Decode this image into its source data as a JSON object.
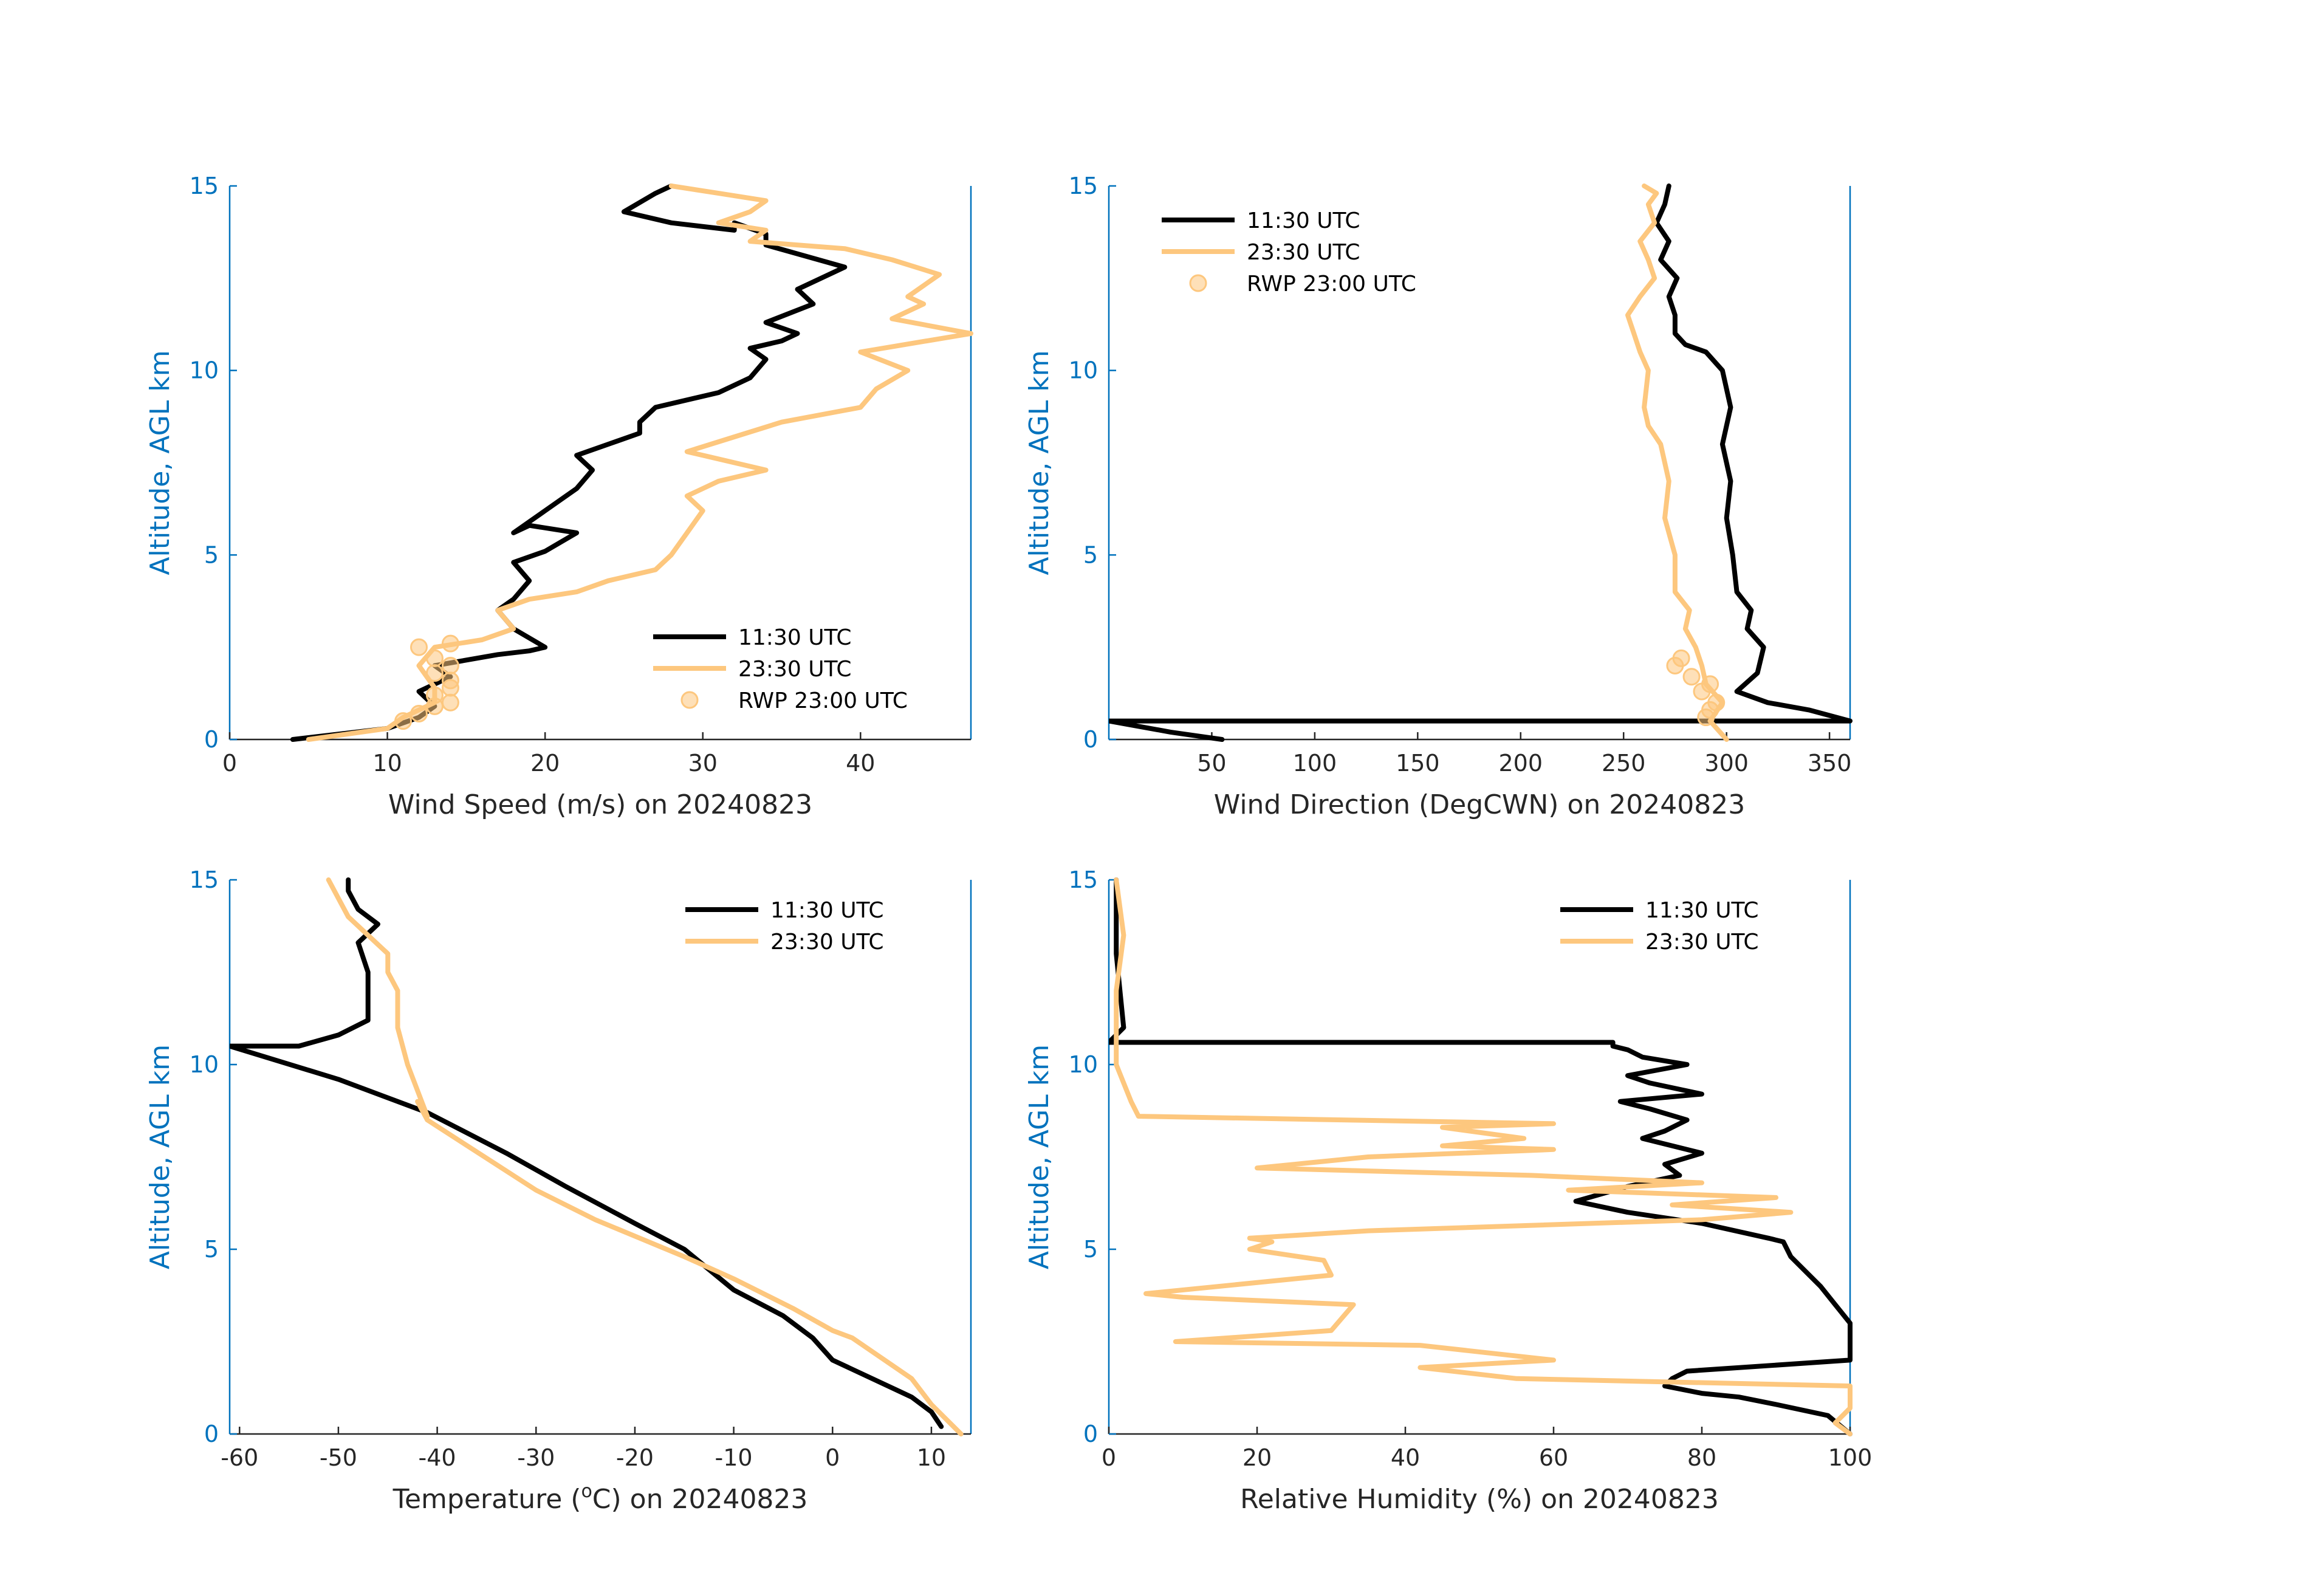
{
  "colors": {
    "black_series": "#000000",
    "orange_series": "#fdc77e",
    "axis_blue": "#0072bd",
    "axis_dark": "#262626"
  },
  "legend_labels": {
    "a": "11:30 UTC",
    "b": "23:30 UTC",
    "c": "RWP 23:00 UTC"
  },
  "chart_data": [
    {
      "id": "wind-speed",
      "type": "line",
      "xlabel": "Wind Speed (m/s) on 20240823",
      "ylabel": "Altitude, AGL km",
      "xlim": [
        0,
        47
      ],
      "ylim": [
        0,
        15
      ],
      "xticks": [
        0,
        10,
        20,
        30,
        40
      ],
      "yticks": [
        0,
        5,
        10,
        15
      ],
      "legend": "bottom-right",
      "series": [
        {
          "name": "11:30 UTC",
          "color": "black",
          "x": [
            4,
            10,
            12,
            13,
            12,
            14,
            13,
            17,
            19,
            20,
            18,
            17,
            18,
            19,
            18,
            20,
            22,
            19,
            18,
            20,
            22,
            23,
            22,
            24,
            26,
            26,
            27,
            31,
            33,
            34,
            33,
            35,
            36,
            34,
            37,
            36,
            39,
            34,
            34,
            32,
            32,
            28,
            25,
            27,
            28
          ],
          "y": [
            0,
            0.3,
            0.6,
            0.9,
            1.3,
            1.7,
            2.0,
            2.3,
            2.4,
            2.5,
            3.0,
            3.5,
            3.8,
            4.3,
            4.8,
            5.1,
            5.6,
            5.8,
            5.6,
            6.2,
            6.8,
            7.3,
            7.7,
            8.0,
            8.3,
            8.6,
            9.0,
            9.4,
            9.8,
            10.3,
            10.6,
            10.8,
            11.0,
            11.3,
            11.8,
            12.2,
            12.8,
            13.4,
            13.7,
            14.0,
            13.8,
            14.0,
            14.3,
            14.8,
            15.0
          ]
        },
        {
          "name": "23:30 UTC",
          "color": "orange",
          "x": [
            5,
            10,
            11,
            13,
            13,
            12,
            13,
            16,
            18,
            17,
            19,
            22,
            24,
            27,
            28,
            29,
            30,
            29,
            31,
            34,
            29,
            32,
            35,
            40,
            41,
            43,
            40,
            47,
            42,
            44,
            43,
            45,
            42,
            39,
            33,
            34,
            31,
            33,
            34,
            31,
            28
          ],
          "y": [
            0,
            0.3,
            0.6,
            1.0,
            1.4,
            2.0,
            2.5,
            2.7,
            3.0,
            3.5,
            3.8,
            4.0,
            4.3,
            4.6,
            5.0,
            5.6,
            6.2,
            6.6,
            7.0,
            7.3,
            7.8,
            8.2,
            8.6,
            9.0,
            9.5,
            10.0,
            10.5,
            11.0,
            11.4,
            11.8,
            12.0,
            12.6,
            13.0,
            13.3,
            13.5,
            13.8,
            14.0,
            14.3,
            14.6,
            14.8,
            15.0
          ]
        },
        {
          "name": "RWP 23:00 UTC",
          "color": "orange",
          "marker": "circle",
          "x": [
            11,
            12,
            13,
            14,
            13,
            14,
            14,
            13,
            14,
            13,
            12,
            14
          ],
          "y": [
            0.5,
            0.7,
            0.9,
            1.0,
            1.2,
            1.4,
            1.6,
            1.8,
            2.0,
            2.2,
            2.5,
            2.6
          ]
        }
      ]
    },
    {
      "id": "wind-direction",
      "type": "line",
      "xlabel": "Wind Direction (DegCWN) on 20240823",
      "ylabel": "Altitude, AGL km",
      "xlim": [
        0,
        360
      ],
      "ylim": [
        0,
        15
      ],
      "xticks": [
        50,
        100,
        150,
        200,
        250,
        300,
        350
      ],
      "yticks": [
        0,
        5,
        10,
        15
      ],
      "legend": "top-left",
      "series": [
        {
          "name": "11:30 UTC",
          "color": "black",
          "x": [
            55,
            30,
            0,
            360,
            340,
            320,
            305,
            315,
            318,
            310,
            312,
            305,
            303,
            300,
            302,
            298,
            302,
            298,
            290,
            280,
            275,
            275,
            272,
            276,
            268,
            272,
            266,
            270,
            272
          ],
          "y": [
            0,
            0.2,
            0.5,
            0.5,
            0.8,
            1.0,
            1.3,
            1.8,
            2.5,
            3.0,
            3.5,
            4.0,
            5.0,
            6.0,
            7.0,
            8.0,
            9.0,
            10.0,
            10.5,
            10.7,
            11.0,
            11.5,
            12.0,
            12.5,
            13.0,
            13.5,
            14.0,
            14.5,
            15.0
          ]
        },
        {
          "name": "23:30 UTC",
          "color": "orange",
          "x": [
            300,
            292,
            298,
            290,
            288,
            285,
            280,
            282,
            275,
            275,
            270,
            272,
            268,
            262,
            260,
            262,
            258,
            255,
            252,
            258,
            265,
            262,
            258,
            265,
            262,
            266,
            260
          ],
          "y": [
            0,
            0.5,
            1.0,
            1.5,
            2.0,
            2.5,
            3.0,
            3.5,
            4.0,
            5.0,
            6.0,
            7.0,
            8.0,
            8.5,
            9.0,
            10.0,
            10.5,
            11.0,
            11.5,
            12.0,
            12.5,
            13.0,
            13.5,
            14.0,
            14.5,
            14.8,
            15.0
          ]
        },
        {
          "name": "RWP 23:00 UTC",
          "color": "orange",
          "marker": "circle",
          "x": [
            290,
            292,
            295,
            288,
            292,
            283,
            275,
            278
          ],
          "y": [
            0.6,
            0.8,
            1.0,
            1.3,
            1.5,
            1.7,
            2.0,
            2.2
          ]
        }
      ]
    },
    {
      "id": "temperature",
      "type": "line",
      "xlabel_main": "Temperature (",
      "xlabel_sup": "o",
      "xlabel_rest": "C) on 20240823",
      "ylabel": "Altitude, AGL km",
      "xlim": [
        -61,
        14
      ],
      "ylim": [
        0,
        15
      ],
      "xticks": [
        -60,
        -50,
        -40,
        -30,
        -20,
        -10,
        0,
        10
      ],
      "yticks": [
        0,
        5,
        10,
        15
      ],
      "legend": "top-right",
      "series": [
        {
          "name": "11:30 UTC",
          "color": "black",
          "x": [
            11,
            10,
            8,
            0,
            -2,
            -5,
            -10,
            -15,
            -20,
            -27,
            -33,
            -41,
            -50,
            -61,
            -54,
            -50,
            -47,
            -47,
            -48,
            -46,
            -48,
            -49,
            -49
          ],
          "y": [
            0.2,
            0.6,
            1.0,
            2.0,
            2.6,
            3.2,
            3.9,
            5.0,
            5.7,
            6.7,
            7.6,
            8.7,
            9.6,
            10.5,
            10.5,
            10.8,
            11.2,
            12.5,
            13.3,
            13.8,
            14.2,
            14.7,
            15.0
          ]
        },
        {
          "name": "23:30 UTC",
          "color": "orange",
          "x": [
            13,
            10,
            8,
            2,
            0,
            -4,
            -10,
            -15,
            -24,
            -30,
            -41,
            -42,
            -41,
            -43,
            -44,
            -44,
            -45,
            -45,
            -47,
            -49,
            -50,
            -51
          ],
          "y": [
            0,
            0.8,
            1.5,
            2.6,
            2.8,
            3.4,
            4.2,
            4.8,
            5.8,
            6.6,
            8.5,
            9.0,
            8.6,
            10.0,
            11.0,
            12.0,
            12.5,
            13.0,
            13.5,
            14.0,
            14.5,
            15.0
          ]
        }
      ]
    },
    {
      "id": "relative-humidity",
      "type": "line",
      "xlabel": "Relative Humidity (%) on 20240823",
      "ylabel": "Altitude, AGL km",
      "xlim": [
        0,
        100
      ],
      "ylim": [
        0,
        15
      ],
      "xticks": [
        0,
        20,
        40,
        60,
        80,
        100
      ],
      "yticks": [
        0,
        5,
        10,
        15
      ],
      "legend": "top-right",
      "series": [
        {
          "name": "11:30 UTC",
          "color": "black",
          "x": [
            100,
            97,
            90,
            85,
            80,
            75,
            76,
            78,
            100,
            100,
            98,
            96,
            92,
            91,
            89,
            80,
            70,
            63,
            70,
            77,
            75,
            80,
            72,
            75,
            78,
            73,
            69,
            80,
            73,
            70,
            78,
            72,
            70,
            68,
            68,
            0,
            2,
            1,
            1
          ],
          "y": [
            0,
            0.5,
            0.8,
            1.0,
            1.1,
            1.3,
            1.5,
            1.7,
            2.0,
            3.0,
            3.5,
            4.0,
            4.8,
            5.2,
            5.3,
            5.7,
            6.0,
            6.3,
            6.7,
            7.0,
            7.3,
            7.6,
            8.0,
            8.2,
            8.5,
            8.8,
            9.0,
            9.2,
            9.5,
            9.7,
            10.0,
            10.2,
            10.4,
            10.5,
            10.6,
            10.6,
            11.0,
            13.0,
            15.0
          ]
        },
        {
          "name": "23:30 UTC",
          "color": "orange",
          "x": [
            100,
            98,
            100,
            100,
            55,
            42,
            60,
            42,
            9,
            30,
            33,
            10,
            5,
            30,
            29,
            19,
            22,
            19,
            35,
            80,
            92,
            76,
            90,
            62,
            80,
            57,
            20,
            25,
            35,
            60,
            45,
            56,
            45,
            60,
            4,
            3,
            1,
            1,
            2,
            1
          ],
          "y": [
            0,
            0.3,
            0.7,
            1.3,
            1.5,
            1.8,
            2.0,
            2.4,
            2.5,
            2.8,
            3.5,
            3.7,
            3.8,
            4.3,
            4.7,
            5.0,
            5.2,
            5.3,
            5.5,
            5.8,
            6.0,
            6.2,
            6.4,
            6.6,
            6.8,
            7.0,
            7.2,
            7.3,
            7.5,
            7.7,
            7.8,
            8.0,
            8.3,
            8.4,
            8.6,
            9.0,
            10.0,
            12.0,
            13.5,
            15.0
          ]
        }
      ]
    }
  ]
}
